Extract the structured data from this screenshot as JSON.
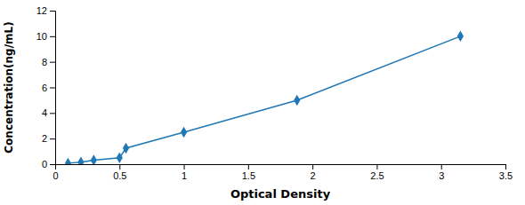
{
  "chart_data": {
    "type": "line",
    "x": [
      0.1,
      0.2,
      0.3,
      0.5,
      0.55,
      1.0,
      1.88,
      3.15
    ],
    "values": [
      0.078,
      0.156,
      0.313,
      0.5,
      1.25,
      2.5,
      5.0,
      10.0
    ],
    "marker": "diamond",
    "xlabel": "Optical Density",
    "ylabel": "Concentration(ng/mL)",
    "xlim": [
      0,
      3.5
    ],
    "ylim": [
      0,
      12
    ],
    "xticks": [
      0,
      0.5,
      1,
      1.5,
      2,
      2.5,
      3,
      3.5
    ],
    "yticks": [
      0,
      2,
      4,
      6,
      8,
      10,
      12
    ],
    "grid": false
  }
}
